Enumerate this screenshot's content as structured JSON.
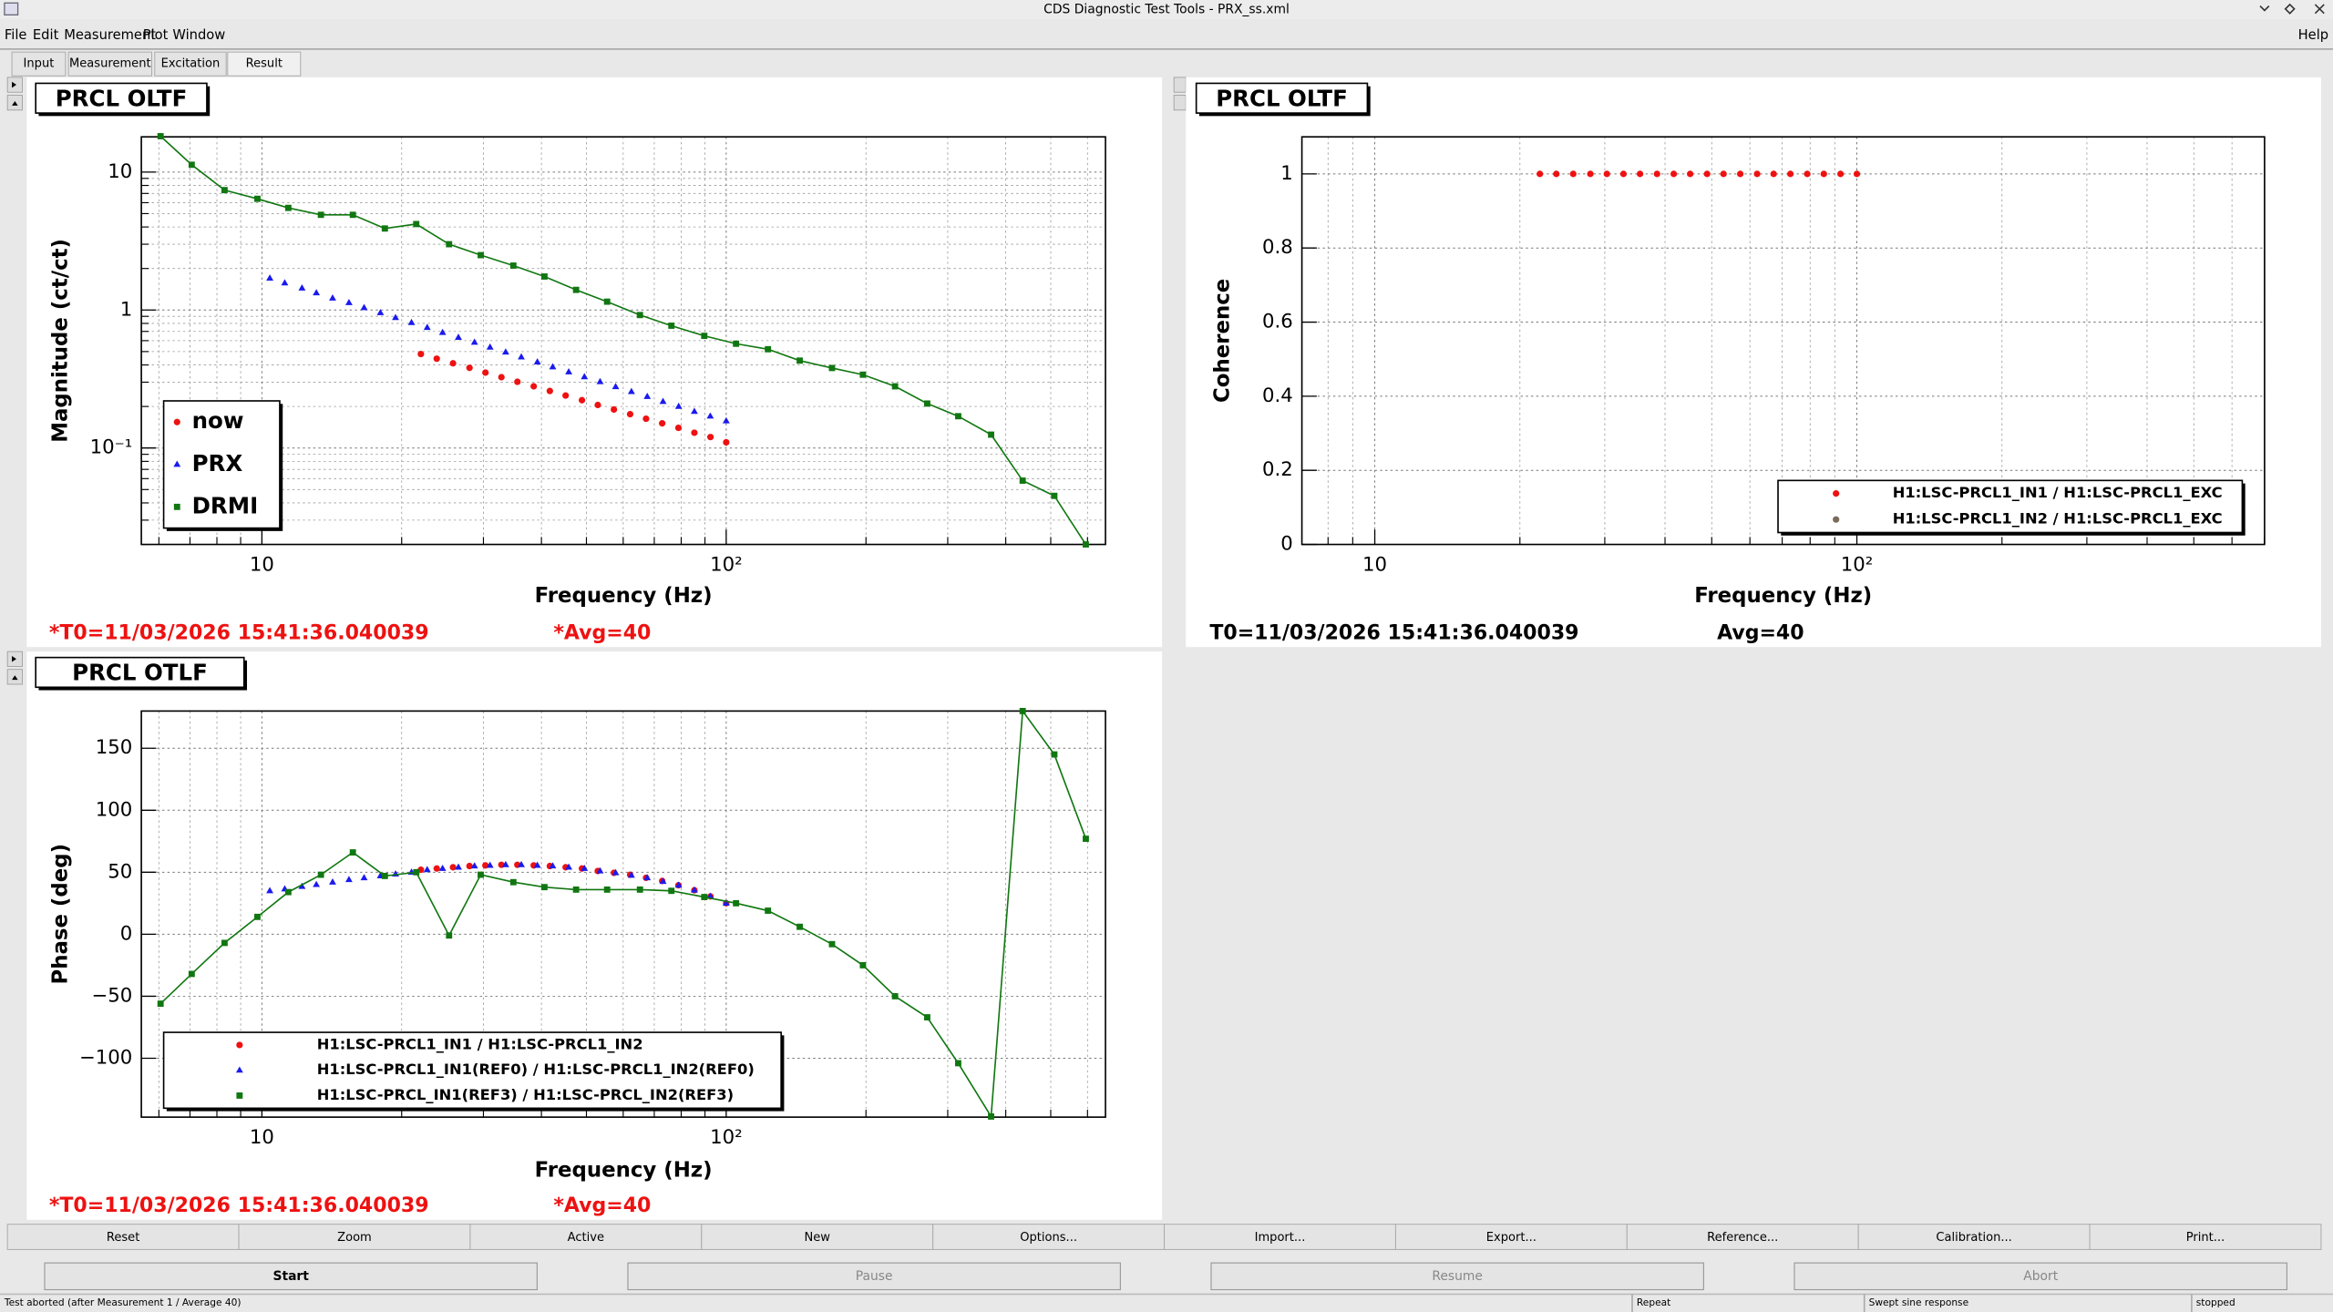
{
  "window": {
    "title": "CDS Diagnostic Test Tools - PRX_ss.xml"
  },
  "menu": [
    "File",
    "Edit",
    "Measurement",
    "Plot",
    "Window"
  ],
  "help": "Help",
  "tabs": [
    "Input",
    "Measurement",
    "Excitation",
    "Result"
  ],
  "chart_data": [
    {
      "type": "line",
      "title": "PRCL OLTF",
      "xlabel": "Frequency (Hz)",
      "ylabel": "Magnitude (ct/ct)",
      "xscale": "log",
      "yscale": "log",
      "xlim": [
        5.5,
        656
      ],
      "ylim": [
        0.02,
        18
      ],
      "xticks": [
        10,
        {
          "value": 100,
          "label": "10²"
        }
      ],
      "yticks": [
        {
          "value": 0.1,
          "label": "10⁻¹"
        },
        1,
        10
      ],
      "xminorticks": [
        6,
        7,
        8,
        9,
        20,
        30,
        40,
        50,
        60,
        70,
        80,
        90,
        200,
        300,
        400,
        500,
        600
      ],
      "yminorticks": [
        0.02,
        0.03,
        0.04,
        0.05,
        0.06,
        0.07,
        0.08,
        0.09,
        0.2,
        0.3,
        0.4,
        0.5,
        0.6,
        0.7,
        0.8,
        0.9,
        2,
        3,
        4,
        5,
        6,
        7,
        8,
        9
      ],
      "grid": true,
      "legend": "lower left",
      "annotations": [
        "*T0=11/03/2026 15:41:36.040039",
        "*Avg=40"
      ],
      "annotation_color": "#ee1111",
      "series": [
        {
          "name": "now",
          "color": "#ee1111",
          "marker": "circle",
          "line": false,
          "x": [
            22.0,
            23.8,
            25.8,
            28.0,
            30.3,
            32.8,
            35.5,
            38.5,
            41.7,
            45.1,
            48.9,
            52.9,
            57.3,
            62.1,
            67.2,
            72.8,
            78.9,
            85.4,
            92.5,
            100
          ],
          "values": [
            0.48,
            0.444,
            0.411,
            0.381,
            0.352,
            0.326,
            0.302,
            0.28,
            0.259,
            0.24,
            0.222,
            0.205,
            0.19,
            0.176,
            0.163,
            0.151,
            0.14,
            0.129,
            0.12,
            0.11
          ]
        },
        {
          "name": "PRX",
          "color": "#1a1aee",
          "marker": "triangle",
          "line": false,
          "x": [
            10.4,
            11.2,
            12.2,
            13.1,
            14.2,
            15.4,
            16.6,
            18.0,
            19.4,
            21.0,
            22.7,
            24.5,
            26.5,
            28.7,
            31.0,
            33.5,
            36.2,
            39.2,
            42.3,
            45.8,
            49.5,
            53.5,
            57.8,
            62.5,
            67.6,
            73.1,
            79.0,
            85.4,
            92.4,
            100
          ],
          "values": [
            1.7,
            1.57,
            1.44,
            1.33,
            1.22,
            1.13,
            1.04,
            0.955,
            0.88,
            0.81,
            0.746,
            0.687,
            0.633,
            0.583,
            0.537,
            0.495,
            0.456,
            0.42,
            0.387,
            0.356,
            0.328,
            0.302,
            0.278,
            0.256,
            0.236,
            0.217,
            0.2,
            0.184,
            0.17,
            0.157
          ]
        },
        {
          "name": "DRMI",
          "color": "#117711",
          "marker": "square",
          "line": true,
          "x": [
            6.05,
            7.06,
            8.31,
            9.78,
            11.4,
            13.4,
            15.7,
            18.4,
            21.5,
            25.3,
            29.6,
            34.8,
            40.6,
            47.5,
            55.4,
            65.2,
            76.2,
            89.7,
            105,
            123,
            144,
            169,
            197,
            231,
            271,
            316,
            372,
            435,
            509,
            595
          ],
          "values": [
            18.2,
            11.3,
            7.4,
            6.4,
            5.5,
            4.9,
            4.9,
            3.9,
            4.2,
            3.0,
            2.5,
            2.1,
            1.75,
            1.4,
            1.15,
            0.92,
            0.77,
            0.65,
            0.57,
            0.52,
            0.43,
            0.38,
            0.34,
            0.28,
            0.21,
            0.17,
            0.125,
            0.058,
            0.045,
            0.02
          ]
        }
      ]
    },
    {
      "type": "scatter",
      "title": "PRCL OLTF",
      "xlabel": "Frequency (Hz)",
      "ylabel": "Coherence",
      "xscale": "log",
      "yscale": "linear",
      "xlim": [
        7.06,
        701
      ],
      "ylim": [
        0,
        1.1
      ],
      "xticks": [
        10,
        {
          "value": 100,
          "label": "10²"
        }
      ],
      "yticks": [
        0,
        0.2,
        0.4,
        0.6,
        0.8,
        1
      ],
      "xminorticks": [
        8,
        9,
        20,
        30,
        40,
        50,
        60,
        70,
        80,
        90,
        200,
        300,
        400,
        500,
        600,
        700
      ],
      "grid": true,
      "legend": "lower right",
      "annotations": [
        "T0=11/03/2026 15:41:36.040039",
        "Avg=40"
      ],
      "annotation_color": "#000000",
      "series": [
        {
          "name": "H1:LSC-PRCL1_IN1 / H1:LSC-PRCL1_EXC",
          "color": "#ee1111",
          "marker": "circle",
          "line": false,
          "x": [
            22.0,
            23.8,
            25.8,
            28.0,
            30.3,
            32.8,
            35.5,
            38.5,
            41.7,
            45.1,
            48.9,
            52.9,
            57.3,
            62.1,
            67.2,
            72.8,
            78.9,
            85.4,
            92.5,
            100
          ],
          "values": [
            1,
            1,
            1,
            1,
            1,
            1,
            1,
            1,
            1,
            1,
            1,
            1,
            1,
            1,
            1,
            1,
            1,
            1,
            1,
            1
          ]
        },
        {
          "name": "H1:LSC-PRCL1_IN2 / H1:LSC-PRCL1_EXC",
          "color": "#7a6a5a",
          "marker": "circle",
          "line": false,
          "x": [],
          "values": []
        }
      ]
    },
    {
      "type": "line",
      "title": "PRCL OTLF",
      "xlabel": "Frequency (Hz)",
      "ylabel": "Phase (deg)",
      "xscale": "log",
      "yscale": "linear",
      "xlim": [
        5.5,
        656
      ],
      "ylim": [
        -147.5,
        180
      ],
      "xticks": [
        10,
        {
          "value": 100,
          "label": "10²"
        }
      ],
      "yticks": [
        {
          "value": -100,
          "label": "−100"
        },
        {
          "value": -50,
          "label": "−50"
        },
        0,
        50,
        100,
        150
      ],
      "xminorticks": [
        6,
        7,
        8,
        9,
        20,
        30,
        40,
        50,
        60,
        70,
        80,
        90,
        200,
        300,
        400,
        500,
        600
      ],
      "grid": true,
      "legend": "lower left",
      "annotations": [
        "*T0=11/03/2026 15:41:36.040039",
        "*Avg=40"
      ],
      "annotation_color": "#ee1111",
      "series": [
        {
          "name": "H1:LSC-PRCL1_IN1 / H1:LSC-PRCL1_IN2",
          "color": "#ee1111",
          "marker": "circle",
          "line": false,
          "x": [
            22.0,
            23.8,
            25.8,
            28.0,
            30.3,
            32.8,
            35.5,
            38.5,
            41.7,
            45.1,
            48.9,
            52.9,
            57.3,
            62.1,
            67.2,
            72.8,
            78.9,
            85.4,
            92.5,
            100
          ],
          "values": [
            52,
            53,
            54,
            55,
            55.5,
            56,
            56,
            55.5,
            55,
            54,
            53,
            51,
            49.5,
            48,
            45.5,
            43,
            39.5,
            35.5,
            30.5,
            25
          ]
        },
        {
          "name": "H1:LSC-PRCL1_IN1(REF0) / H1:LSC-PRCL1_IN2(REF0)",
          "color": "#1a1aee",
          "marker": "triangle",
          "line": false,
          "x": [
            10.4,
            11.2,
            12.2,
            13.1,
            14.2,
            15.4,
            16.6,
            18.0,
            19.4,
            21.0,
            22.7,
            24.5,
            26.5,
            28.7,
            31.0,
            33.5,
            36.2,
            39.2,
            42.3,
            45.8,
            49.5,
            53.5,
            57.8,
            62.5,
            67.6,
            73.1,
            79.0,
            85.4,
            92.4,
            100
          ],
          "values": [
            35,
            36.5,
            38.5,
            40,
            42,
            44,
            45.5,
            47,
            48.5,
            50,
            52,
            53,
            54,
            55,
            55.5,
            56,
            56,
            55.5,
            55,
            54,
            53,
            51,
            49.5,
            47.5,
            45.5,
            42.5,
            39.5,
            35.5,
            30.5,
            25
          ]
        },
        {
          "name": "H1:LSC-PRCL_IN1(REF3) / H1:LSC-PRCL_IN2(REF3)",
          "color": "#117711",
          "marker": "square",
          "line": true,
          "x": [
            6.05,
            7.06,
            8.31,
            9.78,
            11.4,
            13.4,
            15.7,
            18.4,
            21.5,
            25.3,
            29.6,
            34.8,
            40.6,
            47.5,
            55.4,
            65.2,
            76.2,
            89.7,
            105,
            123,
            144,
            169,
            197,
            231,
            271,
            316,
            372,
            435,
            509,
            595
          ],
          "values": [
            -56,
            -32,
            -7,
            14,
            34,
            48,
            66,
            47,
            50,
            -1,
            48,
            42,
            38,
            36,
            36,
            36,
            35,
            30,
            25,
            19,
            6,
            -8,
            -25,
            -50,
            -67,
            -104,
            -147,
            180,
            145,
            77
          ]
        }
      ]
    }
  ],
  "buttons": [
    "Reset",
    "Zoom",
    "Active",
    "New",
    "Options...",
    "Import...",
    "Export...",
    "Reference...",
    "Calibration...",
    "Print..."
  ],
  "controls": [
    "Start",
    "Pause",
    "Resume",
    "Abort"
  ],
  "status": [
    "Test aborted (after Measurement 1 / Average 40)",
    "Repeat",
    "Swept sine response",
    "stopped"
  ]
}
